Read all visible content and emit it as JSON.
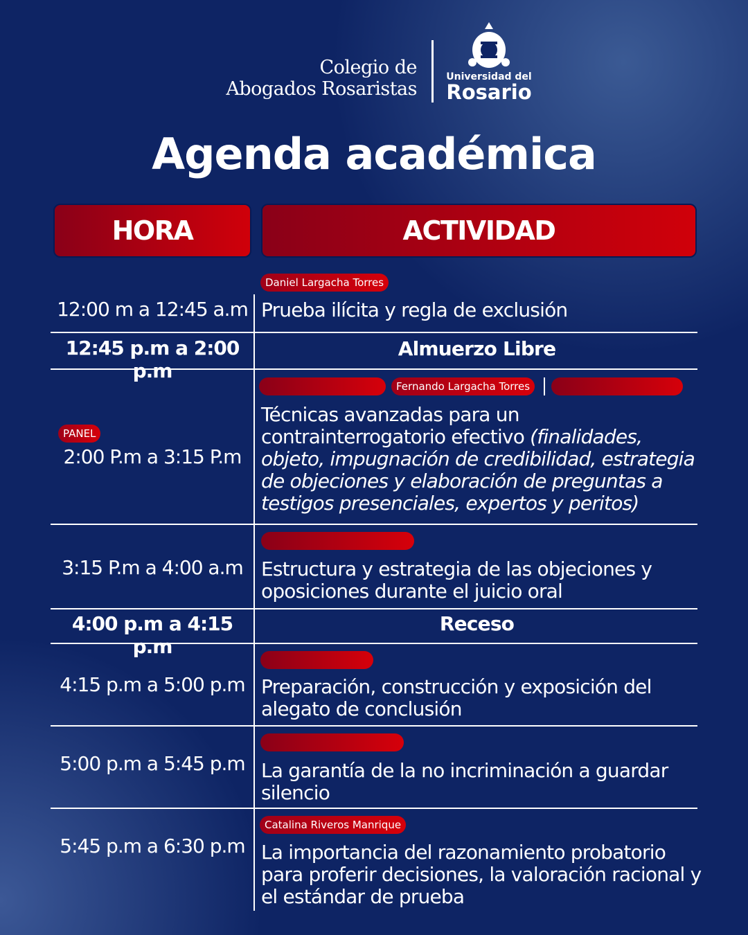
{
  "header": {
    "org_line1": "Colegio de",
    "org_line2": "Abogados Rosaristas",
    "univ_line1": "Universidad del",
    "univ_line2": "Rosario",
    "title": "Agenda académica"
  },
  "table": {
    "columns": [
      "HORA",
      "ACTIVIDAD"
    ],
    "rows": [
      {
        "time": "12:00 m a 12:45 a.m",
        "speaker": "Daniel Largacha Torres",
        "activity": "Prueba ilícita y regla de exclusión"
      },
      {
        "time": "12:45 p.m a 2:00 p.m",
        "activity": "Almuerzo Libre"
      },
      {
        "time": "2:00 P.m a 3:15 P.m",
        "tag": "PANEL",
        "speaker": "Fernando Largacha Torres",
        "activity": "Técnicas avanzadas para un contrainterrogatorio efectivo",
        "activity_italic": "(finalidades, objeto, impugnación de credibilidad, estrategia de objeciones y elaboración de preguntas a testigos presenciales, expertos y peritos)"
      },
      {
        "time": "3:15 P.m a 4:00 a.m",
        "activity": "Estructura y estrategia de las objeciones y oposiciones durante el juicio oral"
      },
      {
        "time": "4:00 p.m a 4:15 p.m",
        "activity": "Receso"
      },
      {
        "time": "4:15 p.m a 5:00 p.m",
        "activity": "Preparación, construcción y exposición del alegato de conclusión"
      },
      {
        "time": "5:00 p.m a 5:45 p.m",
        "activity": "La garantía de la no incriminación a guardar silencio"
      },
      {
        "time": "5:45 p.m a 6:30 p.m",
        "speaker": "Catalina Riveros Manrique",
        "activity": "La importancia del razonamiento probatorio para proferir decisiones, la valoración racional y el estándar de prueba"
      }
    ]
  }
}
